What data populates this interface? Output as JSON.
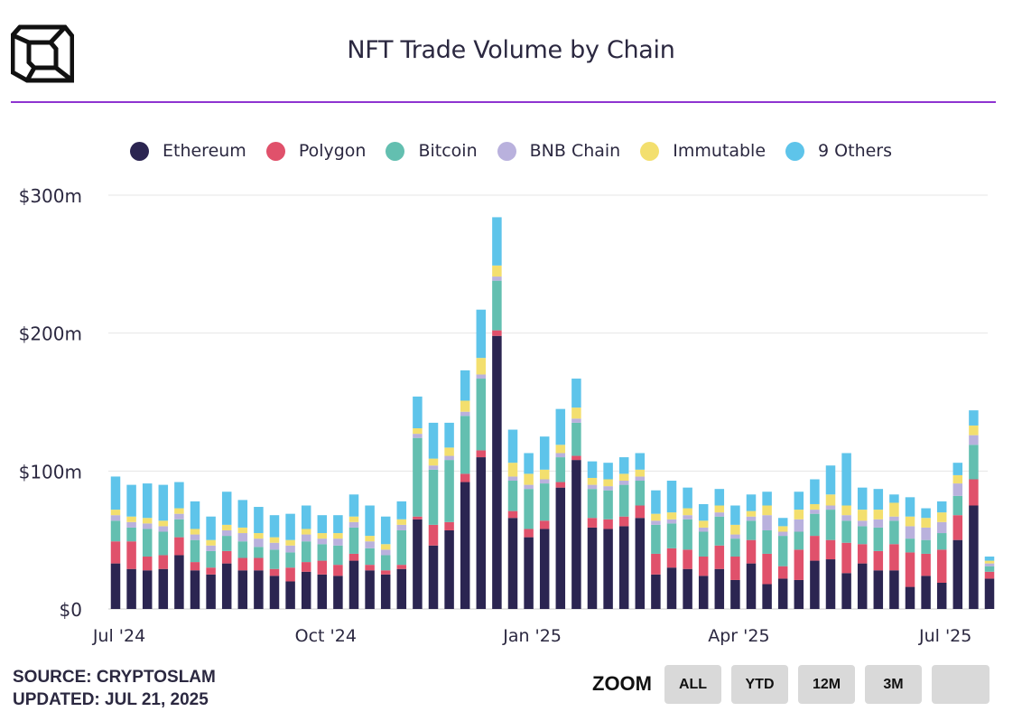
{
  "header": {
    "title": "NFT Trade Volume by Chain",
    "logo": "cube-logo-icon"
  },
  "colors": {
    "accent_rule": "#8e33d0",
    "Ethereum": "#2b2551",
    "Polygon": "#e0516b",
    "Bitcoin": "#63bfb0",
    "BNB Chain": "#b9b1dd",
    "Immutable": "#f3df6e",
    "9 Others": "#5ec4ea"
  },
  "legend": [
    "Ethereum",
    "Polygon",
    "Bitcoin",
    "BNB Chain",
    "Immutable",
    "9 Others"
  ],
  "chart_data": {
    "type": "bar",
    "stacked": true,
    "title": "NFT Trade Volume by Chain",
    "xlabel": "",
    "ylabel": "",
    "ylim": [
      0,
      300
    ],
    "y_unit": "$m",
    "y_ticks": [
      "$0",
      "$100m",
      "$200m",
      "$300m"
    ],
    "y_tick_values": [
      0,
      100,
      200,
      300
    ],
    "x_ticks": [
      {
        "label": "Jul '24",
        "index": 0
      },
      {
        "label": "Oct '24",
        "index": 13
      },
      {
        "label": "Jan '25",
        "index": 26
      },
      {
        "label": "Apr '25",
        "index": 39
      },
      {
        "label": "Jul '25",
        "index": 52
      }
    ],
    "grid": true,
    "legend_position": "top",
    "period": "weekly",
    "series": [
      {
        "name": "Ethereum",
        "values": [
          33,
          29,
          28,
          29,
          39,
          28,
          25,
          33,
          28,
          28,
          24,
          20,
          27,
          25,
          24,
          35,
          28,
          25,
          29,
          65,
          46,
          57,
          92,
          110,
          198,
          66,
          52,
          58,
          88,
          108,
          59,
          58,
          60,
          66,
          25,
          30,
          29,
          24,
          29,
          21,
          33,
          18,
          22,
          21,
          35,
          36,
          26,
          33,
          28,
          28,
          16,
          24,
          19,
          50,
          75,
          22
        ]
      },
      {
        "name": "Polygon",
        "values": [
          16,
          20,
          10,
          10,
          13,
          6,
          5,
          9,
          9,
          9,
          5,
          10,
          7,
          10,
          8,
          5,
          4,
          3,
          3,
          2,
          15,
          6,
          6,
          5,
          4,
          5,
          6,
          6,
          4,
          3,
          7,
          7,
          7,
          9,
          15,
          14,
          14,
          14,
          17,
          17,
          17,
          22,
          9,
          22,
          18,
          14,
          22,
          14,
          14,
          19,
          25,
          16,
          24,
          18,
          19,
          5
        ]
      },
      {
        "name": "Bitcoin",
        "values": [
          15,
          10,
          20,
          17,
          13,
          16,
          12,
          11,
          12,
          8,
          14,
          11,
          15,
          12,
          14,
          19,
          12,
          11,
          25,
          57,
          40,
          45,
          42,
          52,
          36,
          22,
          29,
          27,
          18,
          24,
          21,
          21,
          23,
          18,
          21,
          18,
          22,
          18,
          21,
          13,
          14,
          17,
          22,
          13,
          16,
          22,
          16,
          13,
          17,
          17,
          10,
          10,
          12,
          14,
          25,
          4
        ]
      },
      {
        "name": "BNB Chain",
        "values": [
          4,
          4,
          4,
          4,
          4,
          4,
          4,
          4,
          6,
          6,
          5,
          5,
          5,
          4,
          5,
          4,
          5,
          4,
          4,
          3,
          3,
          3,
          3,
          3,
          3,
          3,
          3,
          3,
          3,
          3,
          3,
          3,
          3,
          3,
          3,
          3,
          3,
          3,
          3,
          3,
          3,
          11,
          3,
          9,
          3,
          3,
          4,
          4,
          6,
          3,
          9,
          9,
          8,
          9,
          7,
          2
        ]
      },
      {
        "name": "Immutable",
        "values": [
          4,
          4,
          4,
          4,
          4,
          4,
          4,
          4,
          4,
          4,
          4,
          4,
          4,
          4,
          4,
          4,
          4,
          4,
          4,
          4,
          5,
          6,
          8,
          12,
          8,
          10,
          8,
          7,
          6,
          8,
          5,
          5,
          5,
          5,
          5,
          5,
          5,
          5,
          5,
          7,
          4,
          7,
          4,
          7,
          4,
          8,
          7,
          8,
          7,
          10,
          7,
          7,
          7,
          6,
          7,
          2
        ]
      },
      {
        "name": "9 Others",
        "values": [
          24,
          23,
          25,
          26,
          19,
          20,
          17,
          24,
          20,
          19,
          16,
          19,
          17,
          13,
          13,
          16,
          22,
          20,
          13,
          23,
          26,
          18,
          22,
          35,
          35,
          24,
          15,
          24,
          26,
          21,
          12,
          12,
          12,
          12,
          17,
          23,
          15,
          12,
          12,
          14,
          12,
          10,
          6,
          13,
          18,
          21,
          38,
          16,
          15,
          6,
          14,
          7,
          8,
          9,
          11,
          3
        ]
      }
    ]
  },
  "footer": {
    "source": "SOURCE: CRYPTOSLAM",
    "updated": "UPDATED: JUL 21, 2025"
  },
  "zoom": {
    "label": "ZOOM",
    "buttons": [
      "ALL",
      "YTD",
      "12M",
      "3M",
      ""
    ]
  }
}
